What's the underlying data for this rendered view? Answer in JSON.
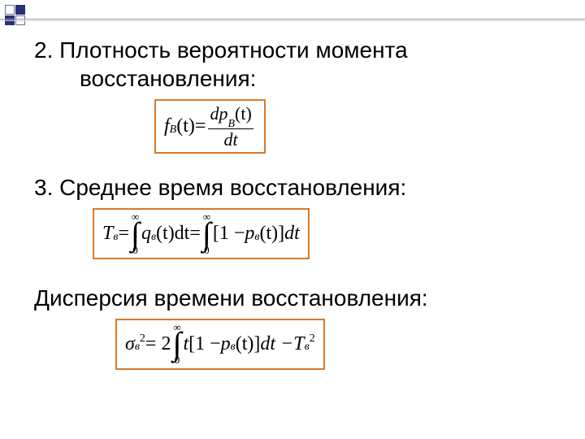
{
  "decoration": {
    "square_border": "#6a6fa0",
    "square_fill": "#2a2f7a"
  },
  "section2": {
    "number": "2.",
    "title_line1": "Плотность вероятности момента",
    "title_line2": "восстановления:",
    "formula": {
      "lhs_f": "f",
      "lhs_sub": "B",
      "lhs_arg": "(t)",
      "eq": " = ",
      "frac_top": "dp",
      "frac_top_sub": "B",
      "frac_top_arg": "(t)",
      "frac_bot": "dt"
    }
  },
  "section3": {
    "number": "3.",
    "title": "Среднее время восстановления:",
    "formula": {
      "T": "T",
      "T_sub": "в",
      "eq": " = ",
      "int_top": "∞",
      "int_bot": "0",
      "q": "q",
      "q_sub": "в",
      "q_arg": "(t)dt",
      "eq2": " = ",
      "bracket_open": "[",
      "one_minus": "1 − ",
      "p": "p",
      "p_sub": "в",
      "p_arg": "(t)",
      "bracket_close": "]",
      "dt": "dt"
    }
  },
  "section4": {
    "title": "Дисперсия времени  восстановления:",
    "formula": {
      "sigma": "σ",
      "sigma_sub": "в",
      "sigma_sup": "2",
      "eq": " = 2",
      "int_top": "∞",
      "int_bot": "0",
      "t": "t",
      "bracket_open": "[",
      "one_minus": "1 − ",
      "p": "p",
      "p_sub": "в",
      "p_arg": "(t)",
      "bracket_close": "]",
      "dt": "dt − ",
      "T": "T",
      "T_sub": "в",
      "T_sup": "2"
    }
  },
  "style": {
    "box_border": "#d9792a",
    "text_color": "#000000",
    "heading_fontsize": 28,
    "math_fontsize": 24
  }
}
